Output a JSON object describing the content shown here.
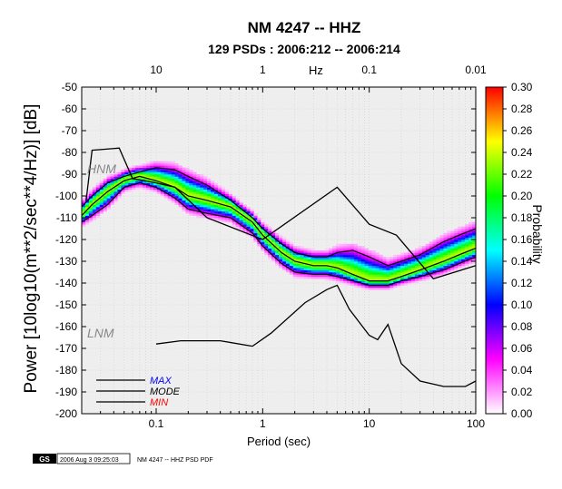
{
  "chart_data": {
    "type": "heatmap",
    "title": "NM 4247 -- HHZ",
    "subtitle": "129 PSDs : 2006:212 -- 2006:214",
    "xlabel": "Period (sec)",
    "ylabel": "Power [10log10(m**2/sec**4/Hz)] [dB]",
    "x_scale": "log",
    "xlim": [
      0.02,
      100
    ],
    "ylim": [
      -200,
      -50
    ],
    "x_ticks": [
      0.1,
      1,
      10,
      100
    ],
    "x_tick_labels": [
      "0.1",
      "1",
      "10",
      "100"
    ],
    "y_ticks": [
      -200,
      -190,
      -180,
      -170,
      -160,
      -150,
      -140,
      -130,
      -120,
      -110,
      -100,
      -90,
      -80,
      -70,
      -60,
      -50
    ],
    "top_axis": {
      "label": "Hz",
      "ticks": [
        10,
        1,
        0.1,
        0.01
      ],
      "tick_labels": [
        "10",
        "1",
        "0.1",
        "0.01"
      ]
    },
    "colorbar": {
      "label": "Probability",
      "range": [
        0,
        0.3
      ],
      "ticks": [
        0.0,
        0.02,
        0.04,
        0.06,
        0.08,
        0.1,
        0.12,
        0.14,
        0.16,
        0.18,
        0.2,
        0.22,
        0.24,
        0.26,
        0.28,
        0.3
      ],
      "tick_labels": [
        "0.00",
        "0.02",
        "0.04",
        "0.06",
        "0.08",
        "0.10",
        "0.12",
        "0.14",
        "0.16",
        "0.18",
        "0.20",
        "0.22",
        "0.24",
        "0.26",
        "0.28",
        "0.30"
      ],
      "colors": [
        "#ffffff",
        "#ff00ff",
        "#0000ff",
        "#00ffff",
        "#00ff00",
        "#ffff00",
        "#ff0000"
      ]
    },
    "grid": true,
    "legend_position": "bottom-left",
    "legend": [
      {
        "name": "MAX",
        "color": "#0000ff"
      },
      {
        "name": "MODE",
        "color": "#000000"
      },
      {
        "name": "MIN",
        "color": "#ff0000"
      }
    ],
    "annotations": [
      "HNM",
      "LNM"
    ],
    "noise_models": {
      "HNM": {
        "x": [
          0.022,
          0.025,
          0.045,
          0.06,
          0.1,
          0.15,
          0.3,
          1,
          5,
          10,
          18,
          40,
          100
        ],
        "y": [
          -102,
          -79,
          -78,
          -92,
          -94,
          -96,
          -110,
          -120,
          -96,
          -113,
          -118,
          -138,
          -132
        ]
      },
      "LNM": {
        "x": [
          0.1,
          0.17,
          0.4,
          0.8,
          1.2,
          2.5,
          4,
          5,
          6.5,
          10,
          12,
          15,
          20,
          30,
          50,
          80,
          100
        ],
        "y": [
          -168,
          -166.5,
          -166.5,
          -169,
          -163,
          -149,
          -143,
          -141,
          -152,
          -164,
          -166,
          -159,
          -177,
          -185,
          -187.5,
          -187.5,
          -185
        ]
      }
    },
    "pdf_statistics": {
      "x": [
        0.02,
        0.025,
        0.035,
        0.05,
        0.07,
        0.1,
        0.15,
        0.2,
        0.3,
        0.5,
        0.8,
        1,
        1.5,
        2,
        3,
        4,
        5,
        7,
        10,
        15,
        20,
        30,
        50,
        70,
        100
      ],
      "MAX": [
        -105,
        -100,
        -94,
        -91,
        -89,
        -87,
        -88,
        -91,
        -95,
        -102,
        -110,
        -115,
        -122,
        -126,
        -128,
        -128,
        -126,
        -125,
        -128,
        -132,
        -130,
        -127,
        -121,
        -118,
        -115
      ],
      "MODE": [
        -109,
        -104,
        -98,
        -93,
        -91,
        -93,
        -96,
        -100,
        -102,
        -105,
        -112,
        -118,
        -126,
        -130,
        -132,
        -132,
        -133,
        -136,
        -139,
        -139,
        -137,
        -134,
        -130,
        -127,
        -124
      ],
      "MIN": [
        -112,
        -109,
        -104,
        -96,
        -94,
        -96,
        -101,
        -106,
        -108,
        -110,
        -117,
        -123,
        -131,
        -135,
        -136,
        -136,
        -137,
        -139,
        -141,
        -141,
        -139,
        -137,
        -134,
        -131,
        -128
      ]
    }
  },
  "footer": {
    "logo_text": "GS",
    "timestamp": "2006 Aug 3 09:25:03",
    "caption": "NM 4247 -- HHZ PSD PDF"
  }
}
